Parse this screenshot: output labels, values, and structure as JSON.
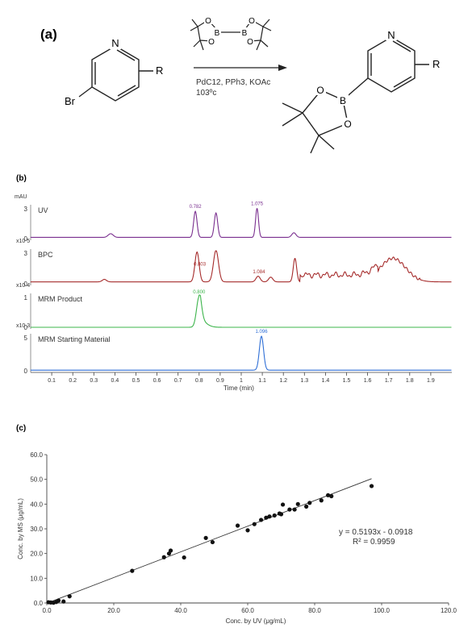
{
  "panel_a": {
    "label": "(a)",
    "reactant": {
      "n_label": "N",
      "r_label": "R",
      "br_label": "Br"
    },
    "reagent": {
      "b_label": "B",
      "o_label": "O"
    },
    "conditions": {
      "line1": "PdC12, PPh3, KOAc",
      "line2": "103ºc"
    },
    "product": {
      "n_label": "N",
      "r_label": "R",
      "b_label": "B",
      "o_label": "O"
    }
  },
  "panel_b": {
    "label": "(b)",
    "x_axis_label": "Time (min)",
    "x_ticks": [
      "0.1",
      "0.2",
      "0.3",
      "0.4",
      "0.5",
      "0.6",
      "0.7",
      "0.8",
      "0.9",
      "1",
      "1.1",
      "1.2",
      "1.3",
      "1.4",
      "1.5",
      "1.6",
      "1.7",
      "1.8",
      "1.9"
    ],
    "traces": [
      {
        "name": "UV",
        "unit": "mAU",
        "y_ticks": [
          "3",
          "0"
        ],
        "color": "#7a2f8f",
        "peak_labels": [
          {
            "text": "0.782",
            "x": 0.782
          },
          {
            "text": "1.075",
            "x": 1.075
          }
        ]
      },
      {
        "name": "BPC",
        "unit": "x10 5",
        "y_ticks": [
          "3",
          "0"
        ],
        "color": "#a52a2a",
        "peak_labels": [
          {
            "text": "0.803",
            "x": 0.803
          },
          {
            "text": "1.084",
            "x": 1.084
          }
        ]
      },
      {
        "name": "MRM Product",
        "unit": "x10 4",
        "y_ticks": [
          "1",
          "0"
        ],
        "color": "#3cb44b",
        "peak_labels": [
          {
            "text": "0.800",
            "x": 0.8
          }
        ]
      },
      {
        "name": "MRM Starting Material",
        "unit": "x10 3",
        "y_ticks": [
          "5",
          "0"
        ],
        "color": "#2f6fd6",
        "peak_labels": [
          {
            "text": "1.096",
            "x": 1.096
          }
        ]
      }
    ]
  },
  "panel_c": {
    "label": "(c)",
    "equation": "y = 0.5193x - 0.0918",
    "r2": "R² = 0.9959"
  },
  "chart_data": {
    "type": "scatter",
    "xlabel": "Conc. by UV (μg/mL)",
    "ylabel": "Conc. by MS (μg/mL)",
    "xlim": [
      0,
      120
    ],
    "ylim": [
      0,
      60
    ],
    "x_ticks": [
      "0.0",
      "20.0",
      "40.0",
      "60.0",
      "80.0",
      "100.0",
      "120.0"
    ],
    "y_ticks": [
      "0.0",
      "10.0",
      "20.0",
      "30.0",
      "40.0",
      "50.0",
      "60.0"
    ],
    "grid": false,
    "fit": {
      "slope": 0.5193,
      "intercept": -0.0918,
      "x_range": [
        0,
        97
      ]
    },
    "points": [
      [
        0.5,
        0.3
      ],
      [
        1.2,
        0.2
      ],
      [
        2,
        0.1
      ],
      [
        2.8,
        0.4
      ],
      [
        3.5,
        1.0
      ],
      [
        5,
        0.6
      ],
      [
        6.8,
        2.7
      ],
      [
        25.5,
        13.0
      ],
      [
        35,
        18.5
      ],
      [
        36.5,
        20.0
      ],
      [
        37,
        21.2
      ],
      [
        41,
        18.4
      ],
      [
        47.5,
        26.3
      ],
      [
        49.5,
        24.6
      ],
      [
        57,
        31.3
      ],
      [
        60,
        29.4
      ],
      [
        62,
        31.9
      ],
      [
        64,
        33.6
      ],
      [
        65.5,
        34.5
      ],
      [
        66.5,
        35.0
      ],
      [
        68,
        35.4
      ],
      [
        69.5,
        36.2
      ],
      [
        70,
        35.9
      ],
      [
        70.5,
        39.8
      ],
      [
        72.5,
        37.8
      ],
      [
        74,
        37.8
      ],
      [
        75,
        40.0
      ],
      [
        77.5,
        39.0
      ],
      [
        78.5,
        40.5
      ],
      [
        82,
        41.5
      ],
      [
        84,
        43.6
      ],
      [
        85,
        43.2
      ],
      [
        97,
        47.3
      ]
    ]
  }
}
